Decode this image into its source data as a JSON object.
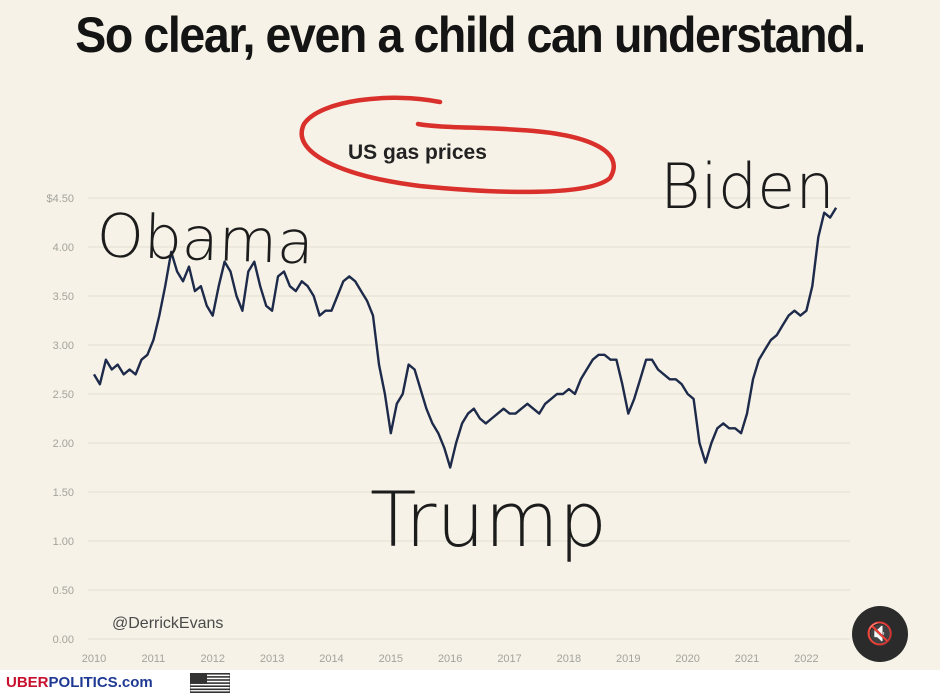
{
  "headline": "So clear, even a child can understand.",
  "handle": "@DerrickEvans",
  "mute_icon": "🔇",
  "icons": {
    "mute": "speaker-muted-icon",
    "flag": "us-flag-icon"
  },
  "site": {
    "part1": "UBER",
    "part2": "POLITICS",
    "part3": ".com"
  },
  "colors": {
    "line": "#1d2a4a",
    "circle": "#d9302c",
    "background": "#f6f2e7"
  },
  "chart_data": {
    "type": "line",
    "title": "US gas prices",
    "xlabel": "",
    "ylabel": "",
    "xlim": [
      2010,
      2022.6
    ],
    "ylim": [
      0,
      4.5
    ],
    "x_ticks": [
      2010,
      2011,
      2012,
      2013,
      2014,
      2015,
      2016,
      2017,
      2018,
      2019,
      2020,
      2021,
      2022
    ],
    "y_tick_values": [
      0,
      0.5,
      1,
      1.5,
      2,
      2.5,
      3,
      3.5,
      4,
      4.5
    ],
    "y_tick_labels": [
      "0.00",
      "0.50",
      "1.00",
      "1.50",
      "2.00",
      "2.50",
      "3.00",
      "3.50",
      "4.00",
      "$4.50"
    ],
    "grid": true,
    "series": [
      {
        "x": [
          2010.0,
          2010.1,
          2010.2,
          2010.3,
          2010.4,
          2010.5,
          2010.6,
          2010.7,
          2010.8,
          2010.9,
          2011.0,
          2011.1,
          2011.2,
          2011.3,
          2011.4,
          2011.5,
          2011.6,
          2011.7,
          2011.8,
          2011.9,
          2012.0,
          2012.1,
          2012.2,
          2012.3,
          2012.4,
          2012.5,
          2012.6,
          2012.7,
          2012.8,
          2012.9,
          2013.0,
          2013.1,
          2013.2,
          2013.3,
          2013.4,
          2013.5,
          2013.6,
          2013.7,
          2013.8,
          2013.9,
          2014.0,
          2014.1,
          2014.2,
          2014.3,
          2014.4,
          2014.5,
          2014.6,
          2014.7,
          2014.8,
          2014.9,
          2015.0,
          2015.1,
          2015.2,
          2015.3,
          2015.4,
          2015.5,
          2015.6,
          2015.7,
          2015.8,
          2015.9,
          2016.0,
          2016.1,
          2016.2,
          2016.3,
          2016.4,
          2016.5,
          2016.6,
          2016.7,
          2016.8,
          2016.9,
          2017.0,
          2017.1,
          2017.2,
          2017.3,
          2017.4,
          2017.5,
          2017.6,
          2017.7,
          2017.8,
          2017.9,
          2018.0,
          2018.1,
          2018.2,
          2018.3,
          2018.4,
          2018.5,
          2018.6,
          2018.7,
          2018.8,
          2018.9,
          2019.0,
          2019.1,
          2019.2,
          2019.3,
          2019.4,
          2019.5,
          2019.6,
          2019.7,
          2019.8,
          2019.9,
          2020.0,
          2020.1,
          2020.2,
          2020.3,
          2020.4,
          2020.5,
          2020.6,
          2020.7,
          2020.8,
          2020.9,
          2021.0,
          2021.1,
          2021.2,
          2021.3,
          2021.4,
          2021.5,
          2021.6,
          2021.7,
          2021.8,
          2021.9,
          2022.0,
          2022.1,
          2022.2,
          2022.3,
          2022.4,
          2022.5
        ],
        "y": [
          2.7,
          2.6,
          2.85,
          2.75,
          2.8,
          2.7,
          2.75,
          2.7,
          2.85,
          2.9,
          3.05,
          3.3,
          3.6,
          3.95,
          3.75,
          3.65,
          3.8,
          3.55,
          3.6,
          3.4,
          3.3,
          3.6,
          3.85,
          3.75,
          3.5,
          3.35,
          3.75,
          3.85,
          3.6,
          3.4,
          3.35,
          3.7,
          3.75,
          3.6,
          3.55,
          3.65,
          3.6,
          3.5,
          3.3,
          3.35,
          3.35,
          3.5,
          3.65,
          3.7,
          3.65,
          3.55,
          3.45,
          3.3,
          2.8,
          2.5,
          2.1,
          2.4,
          2.5,
          2.8,
          2.75,
          2.55,
          2.35,
          2.2,
          2.1,
          1.95,
          1.75,
          2.0,
          2.2,
          2.3,
          2.35,
          2.25,
          2.2,
          2.25,
          2.3,
          2.35,
          2.3,
          2.3,
          2.35,
          2.4,
          2.35,
          2.3,
          2.4,
          2.45,
          2.5,
          2.5,
          2.55,
          2.5,
          2.65,
          2.75,
          2.85,
          2.9,
          2.9,
          2.85,
          2.85,
          2.6,
          2.3,
          2.45,
          2.65,
          2.85,
          2.85,
          2.75,
          2.7,
          2.65,
          2.65,
          2.6,
          2.5,
          2.45,
          2.0,
          1.8,
          2.0,
          2.15,
          2.2,
          2.15,
          2.15,
          2.1,
          2.3,
          2.65,
          2.85,
          2.95,
          3.05,
          3.1,
          3.2,
          3.3,
          3.35,
          3.3,
          3.35,
          3.6,
          4.1,
          4.35,
          4.3,
          4.4
        ]
      }
    ],
    "annotations": [
      "Obama",
      "Trump",
      "Biden"
    ]
  }
}
